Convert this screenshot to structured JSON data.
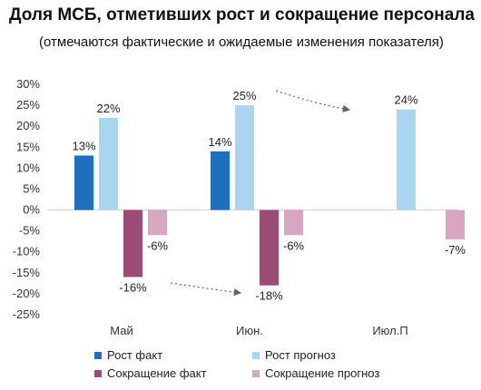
{
  "chart_data": {
    "type": "bar",
    "title": "Доля МСБ, отметивших рост и сокращение персонала",
    "subtitle": "(отмечаются фактические и ожидаемые изменения показателя)",
    "categories": [
      "Май",
      "Июн.",
      "Июл.П"
    ],
    "series": [
      {
        "name": "Рост факт",
        "color": "#1f6fbf",
        "values": [
          13,
          14,
          null
        ],
        "labels": [
          "13%",
          "14%",
          ""
        ]
      },
      {
        "name": "Рост прогноз",
        "color": "#a8d6ee",
        "values": [
          22,
          25,
          24
        ],
        "labels": [
          "22%",
          "25%",
          "24%"
        ]
      },
      {
        "name": "Сокращение факт",
        "color": "#9b4c74",
        "values": [
          -16,
          -18,
          null
        ],
        "labels": [
          "-16%",
          "-18%",
          ""
        ]
      },
      {
        "name": "Сокращение прогноз",
        "color": "#d8a6bf",
        "values": [
          -6,
          -6,
          -7
        ],
        "labels": [
          "-6%",
          "-6%",
          "-7%"
        ]
      }
    ],
    "ylim": [
      -25,
      30
    ],
    "yticks": [
      "30%",
      "25%",
      "20%",
      "15%",
      "10%",
      "5%",
      "0%",
      "-5%",
      "-10%",
      "-15%",
      "-20%",
      "-25%"
    ],
    "xlabel": "",
    "ylabel": "",
    "grid": false,
    "legend_position": "bottom"
  }
}
